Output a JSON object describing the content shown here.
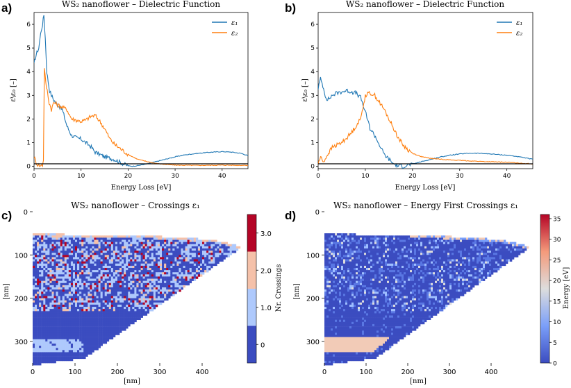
{
  "panels": {
    "a": "a)",
    "b": "b)",
    "c": "c)",
    "d": "d)"
  },
  "colors": {
    "eps1": "#1f77b4",
    "eps2": "#ff7f0e",
    "axis": "#000000"
  },
  "chart_data": [
    {
      "id": "a",
      "type": "line",
      "title": "WS₂ nanoflower – Dielectric Function",
      "xlabel": "Energy Loss [eV]",
      "ylabel": "ε\\ε₀ [–]",
      "xlim": [
        0,
        45.5
      ],
      "ylim": [
        -0.1,
        6.5
      ],
      "xticks": [
        0,
        10,
        20,
        30,
        40
      ],
      "yticks": [
        0,
        1,
        2,
        3,
        4,
        5,
        6
      ],
      "legend": "top-right",
      "series": [
        {
          "name": "ε₁",
          "color": "#1f77b4",
          "x": [
            0,
            0.3,
            0.6,
            1.0,
            1.4,
            1.8,
            2.1,
            2.4,
            2.7,
            3.0,
            3.3,
            3.7,
            4.2,
            5,
            6,
            7,
            8,
            9,
            10,
            11,
            12,
            13,
            14,
            15,
            16,
            17,
            18,
            19,
            20,
            21,
            22,
            24,
            26,
            28,
            30,
            32,
            34,
            36,
            38,
            40,
            42,
            44,
            45.5
          ],
          "y": [
            4.3,
            4.6,
            4.8,
            5.0,
            5.6,
            6.0,
            6.4,
            5.4,
            4.0,
            3.6,
            3.2,
            3.0,
            2.8,
            2.6,
            2.4,
            1.7,
            1.3,
            1.2,
            1.15,
            1.0,
            0.85,
            0.6,
            0.5,
            0.4,
            0.35,
            0.3,
            0.2,
            0.1,
            0.02,
            0.0,
            0.03,
            0.1,
            0.2,
            0.3,
            0.4,
            0.48,
            0.53,
            0.57,
            0.6,
            0.62,
            0.6,
            0.55,
            0.45
          ]
        },
        {
          "name": "ε₂",
          "color": "#ff7f0e",
          "x": [
            0,
            0.3,
            0.6,
            1.0,
            1.4,
            1.8,
            2.0,
            2.2,
            2.5,
            2.8,
            3.2,
            3.7,
            4.2,
            5,
            6,
            7,
            8,
            9,
            10,
            11,
            12,
            13,
            14,
            15,
            16,
            17,
            18,
            19,
            20,
            22,
            24,
            26,
            28,
            30,
            35,
            40,
            45.5
          ],
          "y": [
            0.4,
            0.25,
            0.1,
            0.05,
            0.02,
            0.05,
            0.3,
            4.2,
            3.5,
            3.2,
            2.7,
            2.4,
            2.7,
            2.6,
            2.5,
            2.4,
            2.0,
            1.95,
            1.9,
            1.95,
            2.1,
            2.15,
            1.9,
            1.6,
            1.2,
            0.95,
            0.8,
            0.65,
            0.5,
            0.3,
            0.2,
            0.12,
            0.08,
            0.05,
            0.04,
            0.05,
            0.04
          ]
        }
      ]
    },
    {
      "id": "b",
      "type": "line",
      "title": "WS₂ nanoflower – Dielectric Function",
      "xlabel": "Energy Loss [eV]",
      "ylabel": "ε\\ε₀ [–]",
      "xlim": [
        0,
        45.5
      ],
      "ylim": [
        -0.1,
        6.5
      ],
      "xticks": [
        0,
        10,
        20,
        30,
        40
      ],
      "yticks": [
        0,
        1,
        2,
        3,
        4,
        5,
        6
      ],
      "legend": "top-right",
      "series": [
        {
          "name": "ε₁",
          "color": "#1f77b4",
          "x": [
            0,
            0.5,
            1.0,
            1.5,
            2,
            3,
            4,
            5,
            6,
            7,
            8,
            9,
            10,
            11,
            12,
            13,
            14,
            15,
            16,
            17,
            18,
            19,
            20,
            22,
            24,
            26,
            28,
            30,
            32,
            34,
            36,
            38,
            40,
            42,
            44,
            45.5
          ],
          "y": [
            3.3,
            3.7,
            3.4,
            3.0,
            2.8,
            3.0,
            3.1,
            3.15,
            3.2,
            3.15,
            3.1,
            2.9,
            2.3,
            1.6,
            1.3,
            0.9,
            0.5,
            0.3,
            0.1,
            0.02,
            0.0,
            0.05,
            0.1,
            0.2,
            0.3,
            0.4,
            0.47,
            0.52,
            0.55,
            0.55,
            0.53,
            0.5,
            0.47,
            0.42,
            0.35,
            0.3
          ]
        },
        {
          "name": "ε₂",
          "color": "#ff7f0e",
          "x": [
            0,
            0.5,
            1.0,
            1.5,
            2,
            3,
            4,
            5,
            6,
            7,
            8,
            9,
            10,
            11,
            12,
            13,
            14,
            15,
            16,
            17,
            18,
            19,
            20,
            22,
            24,
            26,
            28,
            30,
            35,
            40,
            45.5
          ],
          "y": [
            0.1,
            0.4,
            0.2,
            0.3,
            0.5,
            0.8,
            0.9,
            1.0,
            1.2,
            1.4,
            1.7,
            2.0,
            3.0,
            3.1,
            3.0,
            2.7,
            2.4,
            2.0,
            1.6,
            1.2,
            0.9,
            0.7,
            0.55,
            0.4,
            0.33,
            0.3,
            0.27,
            0.25,
            0.2,
            0.17,
            0.1
          ]
        }
      ]
    },
    {
      "id": "c",
      "type": "heatmap",
      "title": "WS₂ nanoflower – Crossings ε₁",
      "xlabel": "[nm]",
      "ylabel": "[nm]",
      "xlim": [
        0,
        500
      ],
      "ylim": [
        350,
        0
      ],
      "xticks": [
        0,
        100,
        200,
        300,
        400
      ],
      "yticks": [
        0,
        100,
        200,
        300
      ],
      "colorbar": {
        "label": "Nr. Crossings",
        "discrete": true,
        "levels": [
          0,
          1,
          2,
          3
        ],
        "tick_labels": [
          "0",
          "1.0",
          "2.0",
          "3.0"
        ],
        "colors": [
          "#3b4cc0",
          "#aec9fc",
          "#f5c1a9",
          "#b40426"
        ]
      }
    },
    {
      "id": "d",
      "type": "heatmap",
      "title": "WS₂ nanoflower – Energy First Crossings ε₁",
      "xlabel": "[nm]",
      "ylabel": "[nm]",
      "xlim": [
        0,
        500
      ],
      "ylim": [
        350,
        0
      ],
      "xticks": [
        0,
        100,
        200,
        300,
        400
      ],
      "yticks": [
        0,
        100,
        200,
        300
      ],
      "colorbar": {
        "label": "Energy [eV]",
        "discrete": false,
        "range": [
          0,
          36
        ],
        "ticks": [
          0,
          5,
          10,
          15,
          20,
          25,
          30,
          35
        ],
        "colormap": "coolwarm"
      }
    }
  ]
}
